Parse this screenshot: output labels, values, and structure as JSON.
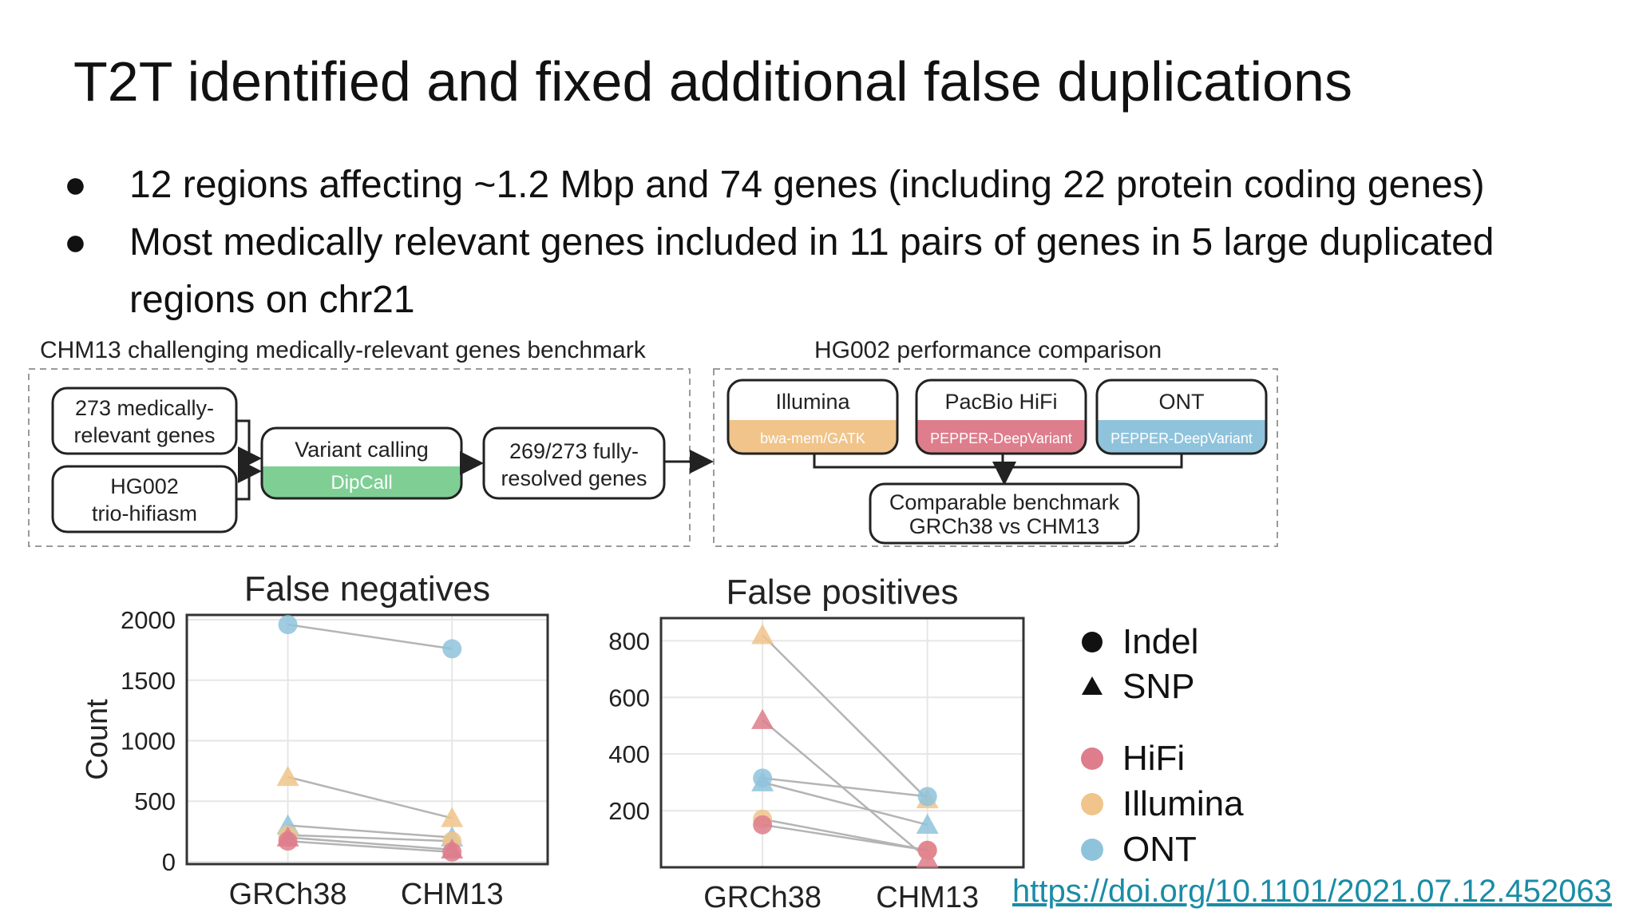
{
  "slide": {
    "title": "T2T identified and fixed additional false duplications",
    "bullets": [
      "12 regions affecting ~1.2 Mbp and 74 genes (including 22 protein coding genes)",
      "Most medically relevant genes included in 11 pairs of genes in 5 large duplicated regions on chr21"
    ],
    "bullet_symbol": "●",
    "link": "https://doi.org/10.1101/2021.07.12.452063"
  },
  "workflow": {
    "left_title": "CHM13 challenging medically-relevant genes benchmark",
    "right_title": "HG002 performance comparison",
    "box_genes": [
      "273 medically-",
      "relevant genes"
    ],
    "box_hg002": [
      "HG002",
      "trio-hifiasm"
    ],
    "box_variant": {
      "label": "Variant calling",
      "tool": "DipCall"
    },
    "box_resolved": [
      "269/273 fully-",
      "resolved genes"
    ],
    "tech_boxes": [
      {
        "label": "Illumina",
        "tool": "bwa-mem/GATK",
        "color": "#f0c48a"
      },
      {
        "label": "PacBio HiFi",
        "tool": "PEPPER-DeepVariant",
        "color": "#de7d8c"
      },
      {
        "label": "ONT",
        "tool": "PEPPER-DeepVariant",
        "color": "#8fc3dc"
      }
    ],
    "box_benchmark": [
      "Comparable benchmark",
      "GRCh38 vs CHM13"
    ]
  },
  "chart_data": [
    {
      "type": "scatter",
      "title": "False negatives",
      "ylabel": "Count",
      "categories": [
        "GRCh38",
        "CHM13"
      ],
      "yticks": [
        0,
        500,
        1000,
        1500,
        2000
      ],
      "ylim": [
        -20,
        2040
      ],
      "series": [
        {
          "tech": "ONT",
          "variant": "Indel",
          "values": [
            1960,
            1760
          ]
        },
        {
          "tech": "Illumina",
          "variant": "SNP",
          "values": [
            700,
            360
          ]
        },
        {
          "tech": "ONT",
          "variant": "SNP",
          "values": [
            300,
            200
          ]
        },
        {
          "tech": "Illumina",
          "variant": "Indel",
          "values": [
            220,
            170
          ]
        },
        {
          "tech": "HiFi",
          "variant": "SNP",
          "values": [
            200,
            100
          ]
        },
        {
          "tech": "HiFi",
          "variant": "Indel",
          "values": [
            170,
            80
          ]
        }
      ]
    },
    {
      "type": "scatter",
      "title": "False positives",
      "ylabel": "",
      "categories": [
        "GRCh38",
        "CHM13"
      ],
      "yticks": [
        200,
        400,
        600,
        800
      ],
      "ylim": [
        0,
        880
      ],
      "series": [
        {
          "tech": "Illumina",
          "variant": "SNP",
          "values": [
            820,
            240
          ]
        },
        {
          "tech": "HiFi",
          "variant": "SNP",
          "values": [
            520,
            30
          ]
        },
        {
          "tech": "ONT",
          "variant": "Indel",
          "values": [
            315,
            250
          ]
        },
        {
          "tech": "ONT",
          "variant": "SNP",
          "values": [
            300,
            150
          ]
        },
        {
          "tech": "Illumina",
          "variant": "Indel",
          "values": [
            170,
            60
          ]
        },
        {
          "tech": "HiFi",
          "variant": "Indel",
          "values": [
            150,
            60
          ]
        }
      ]
    }
  ],
  "legend": {
    "shapes": [
      {
        "label": "Indel",
        "shape": "circle"
      },
      {
        "label": "SNP",
        "shape": "triangle"
      }
    ],
    "colors": [
      {
        "label": "HiFi",
        "color": "#de7d8c"
      },
      {
        "label": "Illumina",
        "color": "#f0c48a"
      },
      {
        "label": "ONT",
        "color": "#8fc3dc"
      }
    ]
  }
}
